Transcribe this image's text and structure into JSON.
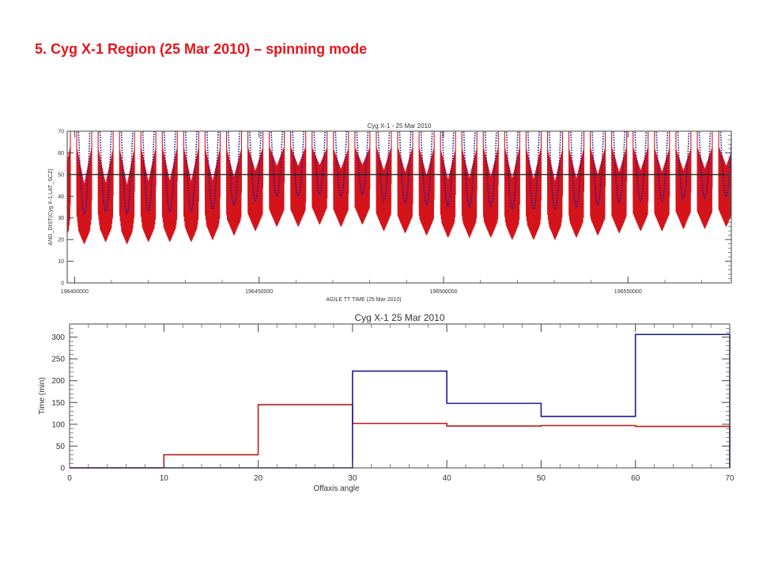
{
  "slide": {
    "title": "5. Cyg X-1 Region (25 Mar 2010) – spinning mode",
    "title_color": "#e8141a"
  },
  "chart_data": [
    {
      "type": "line",
      "title": "Cyg X-1 - 25 Mar 2010",
      "xlabel": "AGILE TT TIME (25 Mar 2010)",
      "ylabel": "ANG_DIST(Cyg X-1,LAT_SCZ)",
      "xlim": [
        196398000,
        196578000
      ],
      "ylim": [
        0,
        70
      ],
      "x_ticks": [
        196400000,
        196450000,
        196500000,
        196550000
      ],
      "x_tick_labels": [
        "196400000",
        "196450000",
        "196500000",
        "196550000"
      ],
      "y_ticks": [
        0,
        10,
        20,
        30,
        40,
        50,
        60,
        70
      ],
      "threshold": 50,
      "threshold_color": "#222222",
      "series": [
        {
          "color": "#d4141a",
          "style": "spin-oscillation"
        },
        {
          "color": "#1a1aa8",
          "style": "dotted-minima"
        }
      ],
      "orbit_period": 5800,
      "first_orbit_x": 196400000,
      "orbit_min": [
        32,
        33,
        32,
        33,
        33,
        33,
        34,
        36,
        38,
        40,
        40,
        41,
        40,
        41,
        38,
        37,
        36,
        35,
        35,
        35,
        34,
        34,
        34,
        35,
        36,
        37,
        38,
        38,
        39,
        39,
        40
      ],
      "grid": false,
      "legend": "none"
    },
    {
      "type": "line",
      "step": true,
      "title": "Cyg X-1 25 Mar 2010",
      "xlabel": "Offaxis angle",
      "ylabel": "Time (min)",
      "xlim": [
        0,
        70
      ],
      "ylim": [
        0,
        330
      ],
      "x_ticks": [
        0,
        10,
        20,
        30,
        40,
        50,
        60,
        70
      ],
      "y_ticks": [
        0,
        50,
        100,
        150,
        200,
        250,
        300
      ],
      "bin_edges": [
        0,
        10,
        20,
        30,
        40,
        50,
        60,
        70
      ],
      "series": [
        {
          "color": "#c01818",
          "values": [
            0,
            30,
            145,
            102,
            96,
            97,
            95
          ]
        },
        {
          "color": "#1a1a9a",
          "values": [
            0,
            0,
            0,
            222,
            148,
            118,
            306
          ]
        }
      ],
      "grid": false,
      "legend": "none"
    }
  ]
}
